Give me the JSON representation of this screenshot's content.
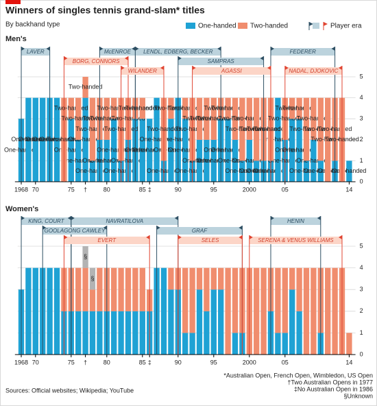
{
  "header": {
    "title": "Winners of singles tennis grand-slam* titles",
    "subtitle": "By backhand type"
  },
  "era_legend": "Player era",
  "chart_data": [
    {
      "type": "bar",
      "stacked": true,
      "title": "Men's",
      "x": [
        1968,
        1969,
        1970,
        1971,
        1972,
        1973,
        1974,
        1975,
        1976,
        1977,
        1978,
        1979,
        1980,
        1981,
        1982,
        1983,
        1984,
        1985,
        1986,
        1987,
        1988,
        1989,
        1990,
        1991,
        1992,
        1993,
        1994,
        1995,
        1996,
        1997,
        1998,
        1999,
        2000,
        2001,
        2002,
        2003,
        2004,
        2005,
        2006,
        2007,
        2008,
        2009,
        2010,
        2011,
        2012,
        2013,
        2014
      ],
      "series": [
        {
          "name": "One-handed",
          "color": "#1fa2d4",
          "values": [
            3,
            4,
            4,
            4,
            4,
            4,
            0,
            3,
            2,
            4,
            1,
            2,
            2,
            3,
            1,
            2,
            3,
            3,
            3,
            4,
            1,
            3,
            4,
            3,
            1,
            2,
            2,
            2,
            3,
            3,
            2,
            1,
            2,
            1,
            1,
            1,
            4,
            2,
            3,
            3,
            1,
            2,
            1,
            0,
            1,
            0,
            1
          ]
        },
        {
          "name": "Two-handed",
          "color": "#f08d6e",
          "values": [
            0,
            0,
            0,
            0,
            0,
            0,
            4,
            1,
            2,
            1,
            3,
            2,
            2,
            1,
            3,
            2,
            1,
            1,
            0,
            0,
            3,
            1,
            0,
            1,
            3,
            2,
            2,
            2,
            1,
            1,
            2,
            3,
            2,
            3,
            3,
            3,
            0,
            2,
            1,
            1,
            3,
            2,
            3,
            4,
            3,
            4,
            0
          ]
        }
      ],
      "eras": [
        [
          {
            "label": "LAVER",
            "start": 1968,
            "end": 1972,
            "color": "#bcd3dd"
          },
          {
            "label": "McENROE",
            "start": 1979,
            "end": 1984,
            "color": "#bcd3dd"
          },
          {
            "label": "LENDL, EDBERG, BECKER",
            "start": 1984,
            "end": 1996,
            "color": "#bcd3dd"
          },
          {
            "label": "FEDERER",
            "start": 2003,
            "end": 2012,
            "color": "#bcd3dd"
          }
        ],
        [
          {
            "label": "BORG, CONNORS",
            "start": 1974,
            "end": 1983,
            "color": "#fcd5c7"
          },
          {
            "label": "SAMPRAS",
            "start": 1990,
            "end": 2002,
            "color": "#bcd3dd"
          }
        ],
        [
          {
            "label": "WILANDER",
            "start": 1982,
            "end": 1988,
            "color": "#fcd5c7"
          },
          {
            "label": "AGASSI",
            "start": 1992,
            "end": 2003,
            "color": "#fcd5c7"
          },
          {
            "label": "NADAL, DJOKOVIC",
            "start": 2005,
            "end": 2013,
            "color": "#fcd5c7"
          }
        ]
      ],
      "xlim": [
        1967.5,
        2014.5
      ],
      "xticks": [
        {
          "value": 1968,
          "label": "1968"
        },
        {
          "value": 1970,
          "label": "70"
        },
        {
          "value": 1975,
          "label": "75"
        },
        {
          "value": 1977,
          "label": "†"
        },
        {
          "value": 1980,
          "label": "80"
        },
        {
          "value": 1985,
          "label": "85"
        },
        {
          "value": 1986,
          "label": "‡"
        },
        {
          "value": 1990,
          "label": "90"
        },
        {
          "value": 1995,
          "label": "95"
        },
        {
          "value": 2000,
          "label": "2000"
        },
        {
          "value": 2005,
          "label": "05"
        },
        {
          "value": 2014,
          "label": "14"
        }
      ],
      "ylim": [
        0,
        5
      ],
      "yticks": [
        0,
        1,
        2,
        3,
        4,
        5
      ],
      "grid": true
    },
    {
      "type": "bar",
      "stacked": true,
      "title": "Women's",
      "x": [
        1968,
        1969,
        1970,
        1971,
        1972,
        1973,
        1974,
        1975,
        1976,
        1977,
        1978,
        1979,
        1980,
        1981,
        1982,
        1983,
        1984,
        1985,
        1986,
        1987,
        1988,
        1989,
        1990,
        1991,
        1992,
        1993,
        1994,
        1995,
        1996,
        1997,
        1998,
        1999,
        2000,
        2001,
        2002,
        2003,
        2004,
        2005,
        2006,
        2007,
        2008,
        2009,
        2010,
        2011,
        2012,
        2013,
        2014
      ],
      "series": [
        {
          "color": "#1fa2d4",
          "values": [
            3,
            4,
            4,
            4,
            4,
            4,
            2,
            2,
            2,
            2,
            2,
            2,
            2,
            2,
            2,
            2,
            2,
            2,
            2,
            4,
            4,
            3,
            3,
            1,
            1,
            3,
            2,
            3,
            3,
            0,
            1,
            1,
            0,
            0,
            0,
            2,
            1,
            1,
            3,
            2,
            0,
            0,
            1,
            0,
            0,
            0,
            0
          ]
        },
        {
          "color": "#f08d6e",
          "values": [
            0,
            0,
            0,
            0,
            0,
            0,
            2,
            2,
            2,
            2,
            1,
            2,
            2,
            2,
            2,
            2,
            2,
            2,
            1,
            0,
            0,
            1,
            1,
            3,
            3,
            1,
            2,
            1,
            1,
            4,
            3,
            3,
            4,
            4,
            4,
            2,
            3,
            3,
            1,
            2,
            4,
            4,
            3,
            4,
            4,
            4,
            1
          ]
        },
        {
          "name": "§",
          "color": "#b3b3b3",
          "values": [
            0,
            0,
            0,
            0,
            0,
            0,
            0,
            0,
            0,
            1,
            1,
            0,
            0,
            0,
            0,
            0,
            0,
            0,
            0,
            0,
            0,
            0,
            0,
            0,
            0,
            0,
            0,
            0,
            0,
            0,
            0,
            0,
            0,
            0,
            0,
            0,
            0,
            0,
            0,
            0,
            0,
            0,
            0,
            0,
            0,
            0,
            0
          ]
        }
      ],
      "eras": [
        [
          {
            "label": "KING, COURT",
            "start": 1968,
            "end": 1975,
            "color": "#bcd3dd"
          },
          {
            "label": "NAVRATILOVA",
            "start": 1975,
            "end": 1990,
            "color": "#bcd3dd"
          },
          {
            "label": "HENIN",
            "start": 2003,
            "end": 2010,
            "color": "#bcd3dd"
          }
        ],
        [
          {
            "label": "GOOLAGONG CAWLEY",
            "start": 1971,
            "end": 1980,
            "color": "#bcd3dd"
          },
          {
            "label": "GRAF",
            "start": 1987,
            "end": 1999,
            "color": "#bcd3dd"
          }
        ],
        [
          {
            "label": "EVERT",
            "start": 1974,
            "end": 1986,
            "color": "#fcd5c7"
          },
          {
            "label": "SELES",
            "start": 1990,
            "end": 1999,
            "color": "#fcd5c7"
          },
          {
            "label": "SERENA & VENUS WILLIAMS",
            "start": 2000,
            "end": 2013,
            "color": "#fcd5c7"
          }
        ]
      ],
      "xlim": [
        1967.5,
        2014.5
      ],
      "xticks": [
        {
          "value": 1968,
          "label": "1968"
        },
        {
          "value": 1970,
          "label": "70"
        },
        {
          "value": 1975,
          "label": "75"
        },
        {
          "value": 1977,
          "label": "†"
        },
        {
          "value": 1980,
          "label": "80"
        },
        {
          "value": 1985,
          "label": "85"
        },
        {
          "value": 1986,
          "label": "‡"
        },
        {
          "value": 1990,
          "label": "90"
        },
        {
          "value": 1995,
          "label": "95"
        },
        {
          "value": 2000,
          "label": "2000"
        },
        {
          "value": 2005,
          "label": "05"
        },
        {
          "value": 2014,
          "label": "14"
        }
      ],
      "ylim": [
        0,
        5
      ],
      "yticks": [
        0,
        1,
        2,
        3,
        4,
        5
      ],
      "grid": true
    }
  ],
  "footnotes": [
    "*Australian Open, French Open, Wimbledon, US Open",
    "†Two Australian Opens in 1977",
    "‡No Australian Open in 1986",
    "§Unknown"
  ],
  "source": "Sources: Official websites; Wikipedia; YouTube"
}
